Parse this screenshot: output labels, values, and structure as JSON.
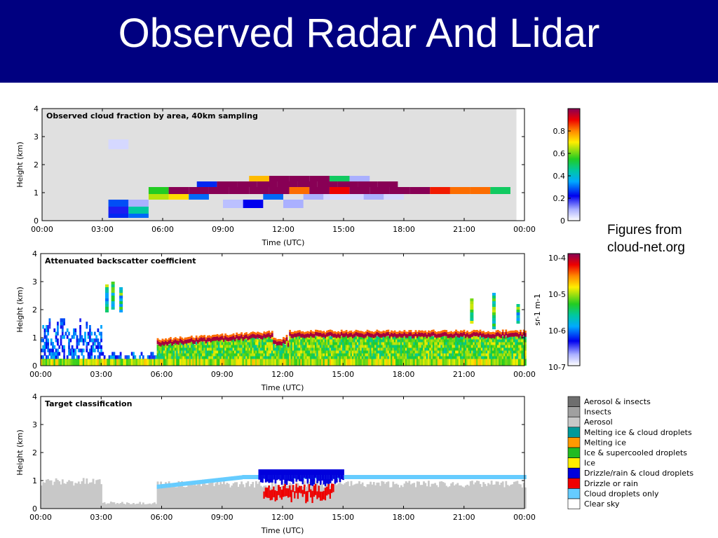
{
  "slide": {
    "title": "Observed Radar And Lidar",
    "note_line1": "Figures from",
    "note_line2": "cloud-net.org"
  },
  "colors": {
    "title_bar": "#000080",
    "panel_bg_fraction": "#e0e0e0"
  },
  "chart_data": [
    {
      "type": "heatmap",
      "title": "Observed cloud fraction by area, 40km sampling",
      "xlabel": "Time (UTC)",
      "ylabel": "Height (km)",
      "x_ticks": [
        "00:00",
        "03:00",
        "06:00",
        "09:00",
        "12:00",
        "15:00",
        "18:00",
        "21:00",
        "00:00"
      ],
      "y_ticks": [
        "0",
        "1",
        "2",
        "3",
        "4"
      ],
      "xlim": [
        0,
        24
      ],
      "ylim": [
        0,
        4
      ],
      "colorbar": {
        "ticks": [
          "0",
          "0.2",
          "0.4",
          "0.6",
          "0.8"
        ],
        "range": [
          0,
          1
        ]
      },
      "cells": [
        {
          "t0": 3.3,
          "t1": 4.3,
          "h0": 2.55,
          "h1": 2.9,
          "v": 0.05
        },
        {
          "t0": 3.3,
          "t1": 4.3,
          "h0": 0.1,
          "h1": 0.25,
          "v": 0.25
        },
        {
          "t0": 4.3,
          "t1": 5.3,
          "h0": 0.1,
          "h1": 0.25,
          "v": 0.3
        },
        {
          "t0": 3.3,
          "t1": 4.3,
          "h0": 0.25,
          "h1": 0.5,
          "v": 0.2
        },
        {
          "t0": 4.3,
          "t1": 5.3,
          "h0": 0.25,
          "h1": 0.5,
          "v": 0.45
        },
        {
          "t0": 3.3,
          "t1": 4.3,
          "h0": 0.5,
          "h1": 0.75,
          "v": 0.28
        },
        {
          "t0": 4.3,
          "t1": 5.3,
          "h0": 0.5,
          "h1": 0.75,
          "v": 0.1
        },
        {
          "t0": 5.3,
          "t1": 6.3,
          "h0": 0.75,
          "h1": 0.95,
          "v": 0.65
        },
        {
          "t0": 6.3,
          "t1": 7.3,
          "h0": 0.75,
          "h1": 0.95,
          "v": 0.72
        },
        {
          "t0": 7.3,
          "t1": 8.3,
          "h0": 0.75,
          "h1": 0.95,
          "v": 0.3
        },
        {
          "t0": 9.0,
          "t1": 10.0,
          "h0": 0.45,
          "h1": 0.75,
          "v": 0.08
        },
        {
          "t0": 10.0,
          "t1": 11.0,
          "h0": 0.45,
          "h1": 0.75,
          "v": 0.22
        },
        {
          "t0": 11.0,
          "t1": 12.0,
          "h0": 0.75,
          "h1": 0.95,
          "v": 0.3
        },
        {
          "t0": 12.0,
          "t1": 13.0,
          "h0": 0.45,
          "h1": 0.75,
          "v": 0.1
        },
        {
          "t0": 13.0,
          "t1": 14.0,
          "h0": 0.75,
          "h1": 0.95,
          "v": 0.1
        },
        {
          "t0": 14.0,
          "t1": 15.0,
          "h0": 0.75,
          "h1": 0.95,
          "v": 0.05
        },
        {
          "t0": 15.0,
          "t1": 16.0,
          "h0": 0.75,
          "h1": 0.95,
          "v": 0.05
        },
        {
          "t0": 16.0,
          "t1": 17.0,
          "h0": 0.75,
          "h1": 0.95,
          "v": 0.1
        },
        {
          "t0": 17.0,
          "t1": 18.0,
          "h0": 0.75,
          "h1": 0.95,
          "v": 0.05
        },
        {
          "t0": 5.3,
          "t1": 6.3,
          "h0": 0.95,
          "h1": 1.2,
          "v": 0.55
        },
        {
          "t0": 6.3,
          "t1": 7.3,
          "h0": 0.95,
          "h1": 1.2,
          "v": 1.0
        },
        {
          "t0": 7.3,
          "t1": 8.3,
          "h0": 0.95,
          "h1": 1.2,
          "v": 1.0
        },
        {
          "t0": 8.3,
          "t1": 9.3,
          "h0": 0.95,
          "h1": 1.2,
          "v": 1.0
        },
        {
          "t0": 9.3,
          "t1": 10.3,
          "h0": 0.95,
          "h1": 1.2,
          "v": 1.0
        },
        {
          "t0": 10.3,
          "t1": 11.3,
          "h0": 0.95,
          "h1": 1.2,
          "v": 1.0
        },
        {
          "t0": 11.3,
          "t1": 12.3,
          "h0": 0.95,
          "h1": 1.2,
          "v": 1.0
        },
        {
          "t0": 12.3,
          "t1": 13.3,
          "h0": 0.95,
          "h1": 1.2,
          "v": 0.82
        },
        {
          "t0": 13.3,
          "t1": 14.3,
          "h0": 0.95,
          "h1": 1.2,
          "v": 1.0
        },
        {
          "t0": 14.3,
          "t1": 15.3,
          "h0": 0.95,
          "h1": 1.2,
          "v": 0.9
        },
        {
          "t0": 15.3,
          "t1": 16.3,
          "h0": 0.95,
          "h1": 1.2,
          "v": 1.0
        },
        {
          "t0": 16.3,
          "t1": 17.3,
          "h0": 0.95,
          "h1": 1.2,
          "v": 1.0
        },
        {
          "t0": 17.3,
          "t1": 18.3,
          "h0": 0.95,
          "h1": 1.2,
          "v": 1.0
        },
        {
          "t0": 18.3,
          "t1": 19.3,
          "h0": 0.95,
          "h1": 1.2,
          "v": 1.0
        },
        {
          "t0": 19.3,
          "t1": 20.3,
          "h0": 0.95,
          "h1": 1.2,
          "v": 0.88
        },
        {
          "t0": 20.3,
          "t1": 21.3,
          "h0": 0.95,
          "h1": 1.2,
          "v": 0.82
        },
        {
          "t0": 21.3,
          "t1": 22.3,
          "h0": 0.95,
          "h1": 1.2,
          "v": 0.82
        },
        {
          "t0": 22.3,
          "t1": 23.3,
          "h0": 0.95,
          "h1": 1.2,
          "v": 0.5
        },
        {
          "t0": 7.7,
          "t1": 8.7,
          "h0": 1.2,
          "h1": 1.4,
          "v": 0.25
        },
        {
          "t0": 8.7,
          "t1": 9.7,
          "h0": 1.2,
          "h1": 1.4,
          "v": 1.0
        },
        {
          "t0": 9.7,
          "t1": 10.7,
          "h0": 1.2,
          "h1": 1.4,
          "v": 1.0
        },
        {
          "t0": 10.7,
          "t1": 11.7,
          "h0": 1.2,
          "h1": 1.4,
          "v": 1.0
        },
        {
          "t0": 11.7,
          "t1": 12.7,
          "h0": 1.2,
          "h1": 1.4,
          "v": 1.0
        },
        {
          "t0": 12.7,
          "t1": 13.7,
          "h0": 1.2,
          "h1": 1.4,
          "v": 1.0
        },
        {
          "t0": 13.7,
          "t1": 14.7,
          "h0": 1.2,
          "h1": 1.4,
          "v": 1.0
        },
        {
          "t0": 14.7,
          "t1": 15.7,
          "h0": 1.2,
          "h1": 1.4,
          "v": 1.0
        },
        {
          "t0": 15.7,
          "t1": 16.7,
          "h0": 1.2,
          "h1": 1.4,
          "v": 1.0
        },
        {
          "t0": 16.7,
          "t1": 17.7,
          "h0": 1.2,
          "h1": 1.4,
          "v": 1.0
        },
        {
          "t0": 10.3,
          "t1": 11.3,
          "h0": 1.4,
          "h1": 1.6,
          "v": 0.75
        },
        {
          "t0": 11.3,
          "t1": 12.3,
          "h0": 1.4,
          "h1": 1.6,
          "v": 1.0
        },
        {
          "t0": 12.3,
          "t1": 13.3,
          "h0": 1.4,
          "h1": 1.6,
          "v": 1.0
        },
        {
          "t0": 13.3,
          "t1": 14.3,
          "h0": 1.4,
          "h1": 1.6,
          "v": 1.0
        },
        {
          "t0": 14.3,
          "t1": 15.3,
          "h0": 1.4,
          "h1": 1.6,
          "v": 0.5
        },
        {
          "t0": 15.3,
          "t1": 16.3,
          "h0": 1.4,
          "h1": 1.6,
          "v": 0.1
        }
      ]
    },
    {
      "type": "heatmap",
      "title": "Attenuated backscatter coefficient",
      "xlabel": "Time (UTC)",
      "ylabel": "Height (km)",
      "x_ticks": [
        "00:00",
        "03:00",
        "06:00",
        "09:00",
        "12:00",
        "15:00",
        "18:00",
        "21:00",
        "00:00"
      ],
      "y_ticks": [
        "0",
        "1",
        "2",
        "3",
        "4"
      ],
      "xlim": [
        0,
        24
      ],
      "ylim": [
        0,
        4
      ],
      "colorbar": {
        "label": "sr-1 m-1",
        "ticks": [
          "10-4",
          "10-5",
          "10-6",
          "10-7"
        ],
        "scale": "log",
        "range": [
          1e-07,
          0.0001
        ]
      }
    },
    {
      "type": "heatmap",
      "title": "Target classification",
      "xlabel": "Time (UTC)",
      "ylabel": "Height (km)",
      "x_ticks": [
        "00:00",
        "03:00",
        "06:00",
        "09:00",
        "12:00",
        "15:00",
        "18:00",
        "21:00",
        "00:00"
      ],
      "y_ticks": [
        "0",
        "1",
        "2",
        "3",
        "4"
      ],
      "xlim": [
        0,
        24
      ],
      "ylim": [
        0,
        4
      ],
      "legend": [
        {
          "label": "Aerosol & insects",
          "color": "#6e6e6e"
        },
        {
          "label": "Insects",
          "color": "#a0a0a0"
        },
        {
          "label": "Aerosol",
          "color": "#c8c8c8"
        },
        {
          "label": "Melting ice & cloud droplets",
          "color": "#009999"
        },
        {
          "label": "Melting ice",
          "color": "#ff9900"
        },
        {
          "label": "Ice & supercooled droplets",
          "color": "#22bb22"
        },
        {
          "label": "Ice",
          "color": "#ffee00"
        },
        {
          "label": "Drizzle/rain & cloud droplets",
          "color": "#0000dd"
        },
        {
          "label": "Drizzle or rain",
          "color": "#ee0000"
        },
        {
          "label": "Cloud droplets only",
          "color": "#66ccff"
        },
        {
          "label": "Clear sky",
          "color": "#ffffff"
        }
      ]
    }
  ]
}
